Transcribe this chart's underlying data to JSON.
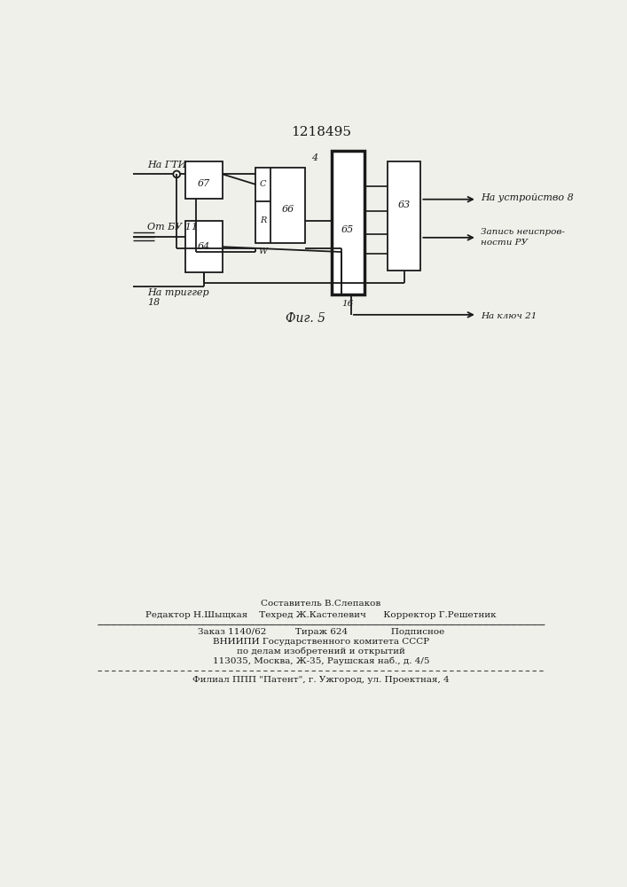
{
  "title": "1218495",
  "fig_caption": "Фиг. 5",
  "bg_color": "#f0f0eb",
  "line_color": "#1a1a1a",
  "footer_line1": "Составитель В.Слепаков",
  "footer_line2_left": "Редактор Н.Шыщкая",
  "footer_line2_mid": "Техред Ж.Кастелевич",
  "footer_line2_right": "Корректор Г.Решетник",
  "footer_line3_left": "Заказ 1140/62",
  "footer_line3_mid": "Тираж 624",
  "footer_line3_right": "Подписное",
  "footer_line4": "ВНИИПИ Государственного комитета СССР",
  "footer_line5": "по делам изобретений и открытий",
  "footer_line6": "113035, Москва, Ж-35, Раушская наб., д. 4/5",
  "footer_line7": "Филиал ППП \"Патент\", г. Ужгород, ул. Проектная, 4"
}
